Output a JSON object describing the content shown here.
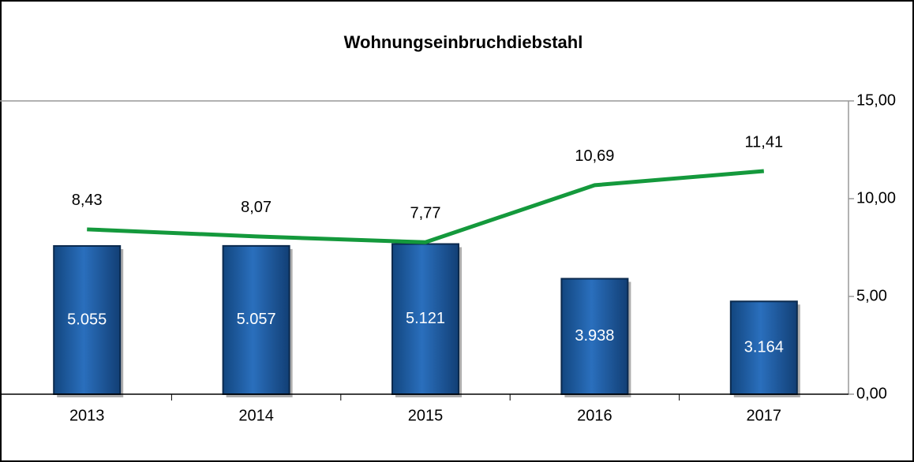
{
  "chart_data": {
    "type": "combo",
    "title": "Wohnungseinbruchdiebstahl",
    "categories": [
      "2013",
      "2014",
      "2015",
      "2016",
      "2017"
    ],
    "series": [
      {
        "type": "bar",
        "color": "#1f5fa8",
        "values": [
          5055,
          5057,
          5121,
          3938,
          3164
        ],
        "value_labels": [
          "5.055",
          "5.057",
          "5.121",
          "3.938",
          "3.164"
        ]
      },
      {
        "type": "line",
        "axis": "y2",
        "color": "#14993c",
        "values": [
          8.43,
          8.07,
          7.77,
          10.69,
          11.41
        ],
        "value_labels": [
          "8,43",
          "8,07",
          "7,77",
          "10,69",
          "11,41"
        ]
      }
    ],
    "ylim": [
      0,
      10000
    ],
    "y2lim": [
      0,
      15
    ],
    "y2ticks": [
      {
        "value": 0,
        "label": "0,00"
      },
      {
        "value": 5,
        "label": "5,00"
      },
      {
        "value": 10,
        "label": "10,00"
      },
      {
        "value": 15,
        "label": "15,00"
      }
    ]
  }
}
